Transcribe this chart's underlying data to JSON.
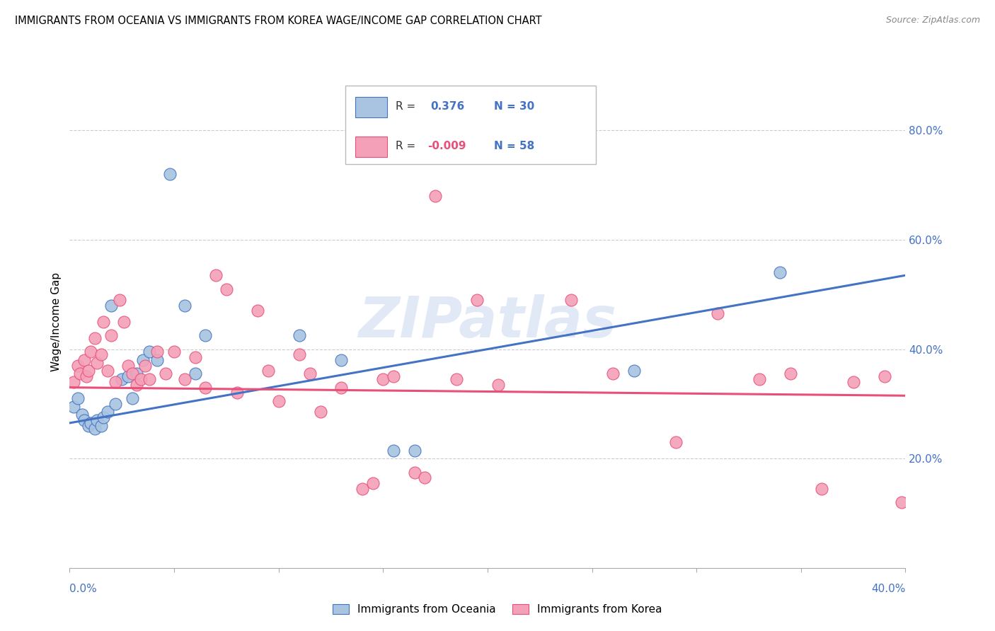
{
  "title": "IMMIGRANTS FROM OCEANIA VS IMMIGRANTS FROM KOREA WAGE/INCOME GAP CORRELATION CHART",
  "source": "Source: ZipAtlas.com",
  "ylabel": "Wage/Income Gap",
  "x_range": [
    0.0,
    0.4
  ],
  "y_range": [
    0.0,
    0.9
  ],
  "color_oceania": "#a8c4e0",
  "color_korea": "#f4a0b8",
  "line_color_oceania": "#4472c4",
  "line_color_korea": "#e8507a",
  "watermark": "ZIPatlas",
  "oceania_x": [
    0.002,
    0.004,
    0.006,
    0.007,
    0.009,
    0.01,
    0.012,
    0.013,
    0.015,
    0.016,
    0.018,
    0.02,
    0.022,
    0.025,
    0.028,
    0.03,
    0.032,
    0.035,
    0.038,
    0.042,
    0.048,
    0.055,
    0.06,
    0.065,
    0.11,
    0.13,
    0.155,
    0.165,
    0.27,
    0.34
  ],
  "oceania_y": [
    0.295,
    0.31,
    0.28,
    0.27,
    0.26,
    0.265,
    0.255,
    0.27,
    0.26,
    0.275,
    0.285,
    0.48,
    0.3,
    0.345,
    0.35,
    0.31,
    0.355,
    0.38,
    0.395,
    0.38,
    0.72,
    0.48,
    0.355,
    0.425,
    0.425,
    0.38,
    0.215,
    0.215,
    0.36,
    0.54
  ],
  "korea_x": [
    0.002,
    0.004,
    0.005,
    0.007,
    0.008,
    0.009,
    0.01,
    0.012,
    0.013,
    0.015,
    0.016,
    0.018,
    0.02,
    0.022,
    0.024,
    0.026,
    0.028,
    0.03,
    0.032,
    0.034,
    0.036,
    0.038,
    0.042,
    0.046,
    0.05,
    0.055,
    0.06,
    0.065,
    0.07,
    0.075,
    0.08,
    0.09,
    0.095,
    0.1,
    0.11,
    0.115,
    0.12,
    0.13,
    0.14,
    0.145,
    0.15,
    0.155,
    0.165,
    0.17,
    0.175,
    0.185,
    0.195,
    0.205,
    0.24,
    0.26,
    0.29,
    0.31,
    0.33,
    0.345,
    0.36,
    0.375,
    0.39,
    0.398
  ],
  "korea_y": [
    0.34,
    0.37,
    0.355,
    0.38,
    0.35,
    0.36,
    0.395,
    0.42,
    0.375,
    0.39,
    0.45,
    0.36,
    0.425,
    0.34,
    0.49,
    0.45,
    0.37,
    0.355,
    0.335,
    0.345,
    0.37,
    0.345,
    0.395,
    0.355,
    0.395,
    0.345,
    0.385,
    0.33,
    0.535,
    0.51,
    0.32,
    0.47,
    0.36,
    0.305,
    0.39,
    0.355,
    0.285,
    0.33,
    0.145,
    0.155,
    0.345,
    0.35,
    0.175,
    0.165,
    0.68,
    0.345,
    0.49,
    0.335,
    0.49,
    0.355,
    0.23,
    0.465,
    0.345,
    0.355,
    0.145,
    0.34,
    0.35,
    0.12
  ],
  "oceania_line_x": [
    0.0,
    0.4
  ],
  "oceania_line_y": [
    0.265,
    0.535
  ],
  "korea_line_x": [
    0.0,
    0.4
  ],
  "korea_line_y": [
    0.33,
    0.315
  ]
}
